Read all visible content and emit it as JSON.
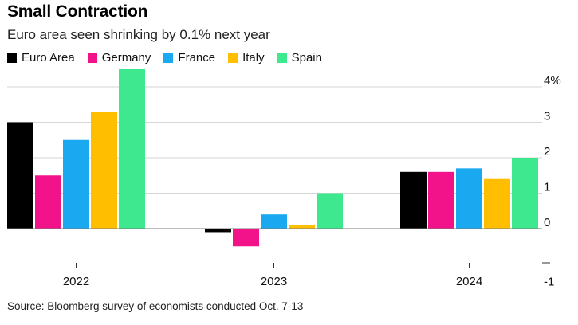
{
  "title": "Small Contraction",
  "subtitle": "Euro area seen shrinking by 0.1% next year",
  "source": "Source: Bloomberg survey of economists conducted Oct. 7-13",
  "colors": {
    "Euro Area": "#000000",
    "Germany": "#f2138a",
    "France": "#1aa9f0",
    "Italy": "#ffbf00",
    "Spain": "#3ee88f"
  },
  "legend": [
    {
      "label": "Euro Area"
    },
    {
      "label": "Germany"
    },
    {
      "label": "France"
    },
    {
      "label": "Italy"
    },
    {
      "label": "Spain"
    }
  ],
  "chart_data": {
    "type": "bar",
    "title": "Small Contraction",
    "subtitle": "Euro area seen shrinking by 0.1% next year",
    "categories": [
      "2022",
      "2023",
      "2024"
    ],
    "series": [
      {
        "name": "Euro Area",
        "values": [
          3.0,
          -0.1,
          1.6
        ]
      },
      {
        "name": "Germany",
        "values": [
          1.5,
          -0.5,
          1.6
        ]
      },
      {
        "name": "France",
        "values": [
          2.5,
          0.4,
          1.7
        ]
      },
      {
        "name": "Italy",
        "values": [
          3.3,
          0.1,
          1.4
        ]
      },
      {
        "name": "Spain",
        "values": [
          4.5,
          1.0,
          2.0
        ]
      }
    ],
    "yticks": [
      -1,
      0,
      1,
      2,
      3,
      4
    ],
    "ytick_labels": [
      "-1",
      "0",
      "1",
      "2",
      "3",
      "4%"
    ],
    "ylim": [
      -1,
      4.5
    ],
    "xlabel": "",
    "ylabel": "",
    "grid": true,
    "legend_position": "top-left"
  }
}
